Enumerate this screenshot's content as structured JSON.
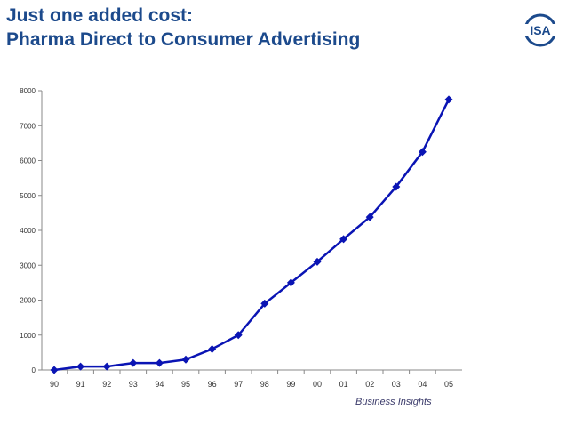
{
  "title": {
    "line1": "Just one added cost:",
    "line2": "Pharma Direct to Consumer Advertising"
  },
  "logo": {
    "text": "ISA"
  },
  "source": "Business Insights",
  "colors": {
    "title": "#1c4a8c",
    "series": "#0a14b4",
    "axis": "#888888",
    "logo_ring": "#1c4a8c"
  },
  "chart_data": {
    "type": "line",
    "categories": [
      "90",
      "91",
      "92",
      "93",
      "94",
      "95",
      "96",
      "97",
      "98",
      "99",
      "00",
      "01",
      "02",
      "03",
      "04",
      "05"
    ],
    "series": [
      {
        "values": [
          0,
          100,
          100,
          200,
          200,
          300,
          600,
          1000,
          1900,
          2500,
          3100,
          3750,
          4380,
          5250,
          6250,
          7750
        ]
      }
    ],
    "yticks": [
      0,
      1000,
      2000,
      3000,
      4000,
      5000,
      6000,
      7000,
      8000
    ],
    "ylim": [
      0,
      8000
    ],
    "xlabel": "",
    "ylabel": "",
    "grid": false,
    "marker": "diamond"
  }
}
